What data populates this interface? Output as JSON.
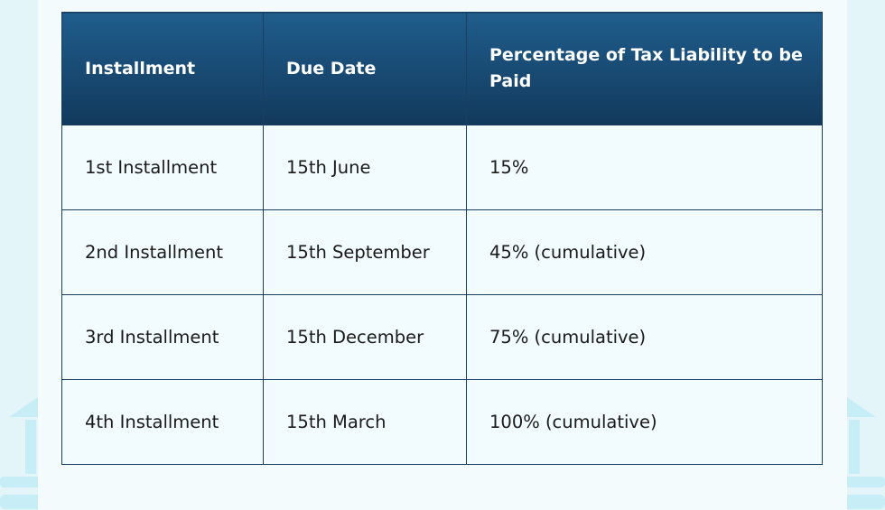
{
  "table": {
    "headers": [
      "Installment",
      "Due Date",
      "Percentage of Tax Liability to be Paid"
    ],
    "rows": [
      [
        "1st Installment",
        "15th June",
        "15%"
      ],
      [
        "2nd Installment",
        "15th September",
        "45% (cumulative)"
      ],
      [
        "3rd Installment",
        "15th December",
        "75% (cumulative)"
      ],
      [
        "4th Installment",
        "15th March",
        "100% (cumulative)"
      ]
    ]
  }
}
